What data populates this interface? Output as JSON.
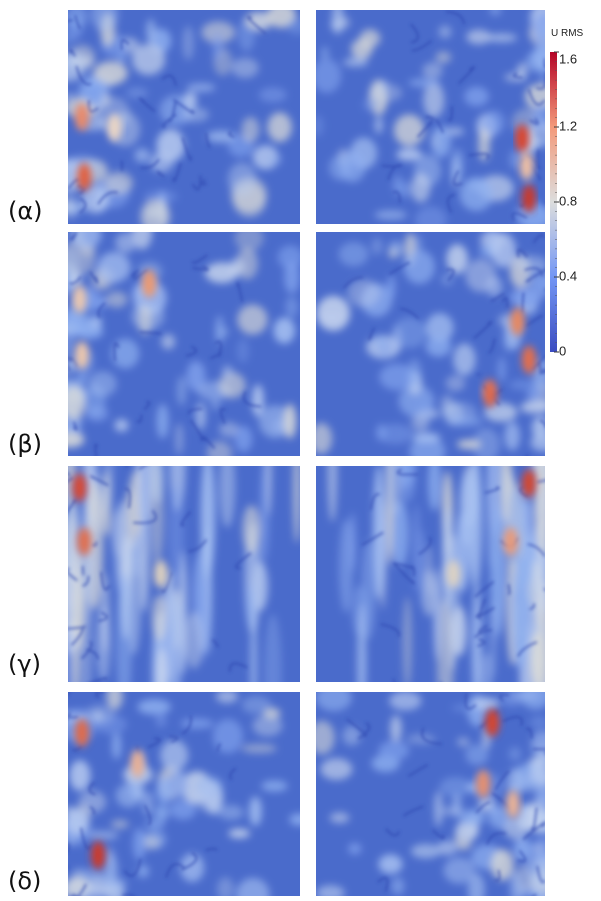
{
  "panels": [
    {
      "label": "(α)"
    },
    {
      "label": "(β)"
    },
    {
      "label": "(γ)"
    },
    {
      "label": "(δ)"
    }
  ],
  "colorbar": {
    "title": "U RMS",
    "range": [
      0,
      1.6
    ],
    "ticks": [
      1.6,
      1.2,
      0.8,
      0.4,
      0
    ]
  }
}
